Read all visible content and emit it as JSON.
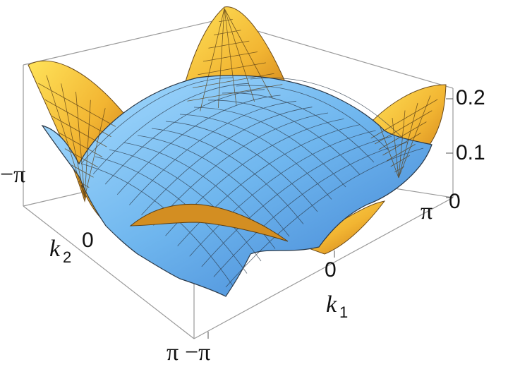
{
  "chart_data": {
    "type": "surface3d",
    "title": "",
    "x_axis": {
      "label": "k",
      "label_subscript": "1",
      "ticks": [
        "−π",
        "0",
        "π"
      ],
      "range": [
        -3.14159,
        3.14159
      ]
    },
    "y_axis": {
      "label": "k",
      "label_subscript": "2",
      "ticks": [
        "−π",
        "0",
        "π"
      ],
      "range": [
        -3.14159,
        3.14159
      ]
    },
    "z_axis": {
      "ticks": [
        "0",
        "0.1",
        "0.2"
      ],
      "range": [
        0,
        0.22
      ]
    },
    "box": true,
    "mesh": true,
    "series": [
      {
        "type": "dome",
        "color": "#6fb6ee",
        "peak_value": 0.15,
        "peak_at": [
          0,
          0
        ],
        "edge_value": 0.05
      },
      {
        "type": "corner_peaks",
        "color": "#f2b532",
        "peak_value": 0.21,
        "peak_at": "corners (±π, ±π)",
        "center_value": 0.0
      }
    ],
    "colors": {
      "blue_surface": "#6fb6ee",
      "orange_surface": "#f2b532",
      "box_line": "#9a9a9a",
      "mesh_line": "#2b3a4a"
    }
  }
}
